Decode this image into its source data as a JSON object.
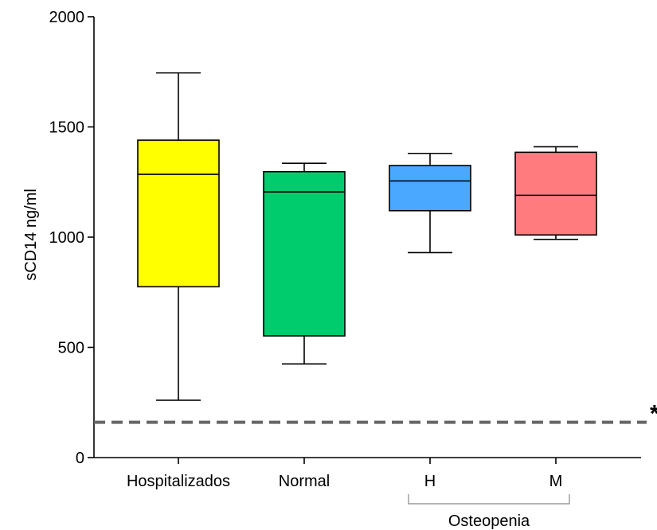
{
  "chart_data": {
    "type": "box",
    "title": "",
    "ylabel": "sCD14 ng/ml",
    "xlabel": "",
    "ylim": [
      0,
      2000
    ],
    "yticks": [
      0,
      500,
      1000,
      1500,
      2000
    ],
    "grid": false,
    "categories": [
      "Hospitalizados",
      "Normal",
      "H",
      "M"
    ],
    "boxes": [
      {
        "category": "Hospitalizados",
        "min": 260,
        "q1": 775,
        "median": 1285,
        "q3": 1440,
        "max": 1745,
        "color": "#ffff00"
      },
      {
        "category": "Normal",
        "min": 425,
        "q1": 552,
        "median": 1205,
        "q3": 1297,
        "max": 1335,
        "color": "#00cc6e"
      },
      {
        "category": "H",
        "min": 930,
        "q1": 1120,
        "median": 1255,
        "q3": 1325,
        "max": 1380,
        "color": "#4aa8ff"
      },
      {
        "category": "M",
        "min": 990,
        "q1": 1010,
        "median": 1190,
        "q3": 1385,
        "max": 1410,
        "color": "#ff7b7e"
      }
    ],
    "reference_line": {
      "value": 160,
      "color": "#666666",
      "style": "dashed"
    },
    "annotation": "*",
    "group_bracket": {
      "label": "Osteopenia",
      "categories": [
        "H",
        "M"
      ]
    }
  }
}
